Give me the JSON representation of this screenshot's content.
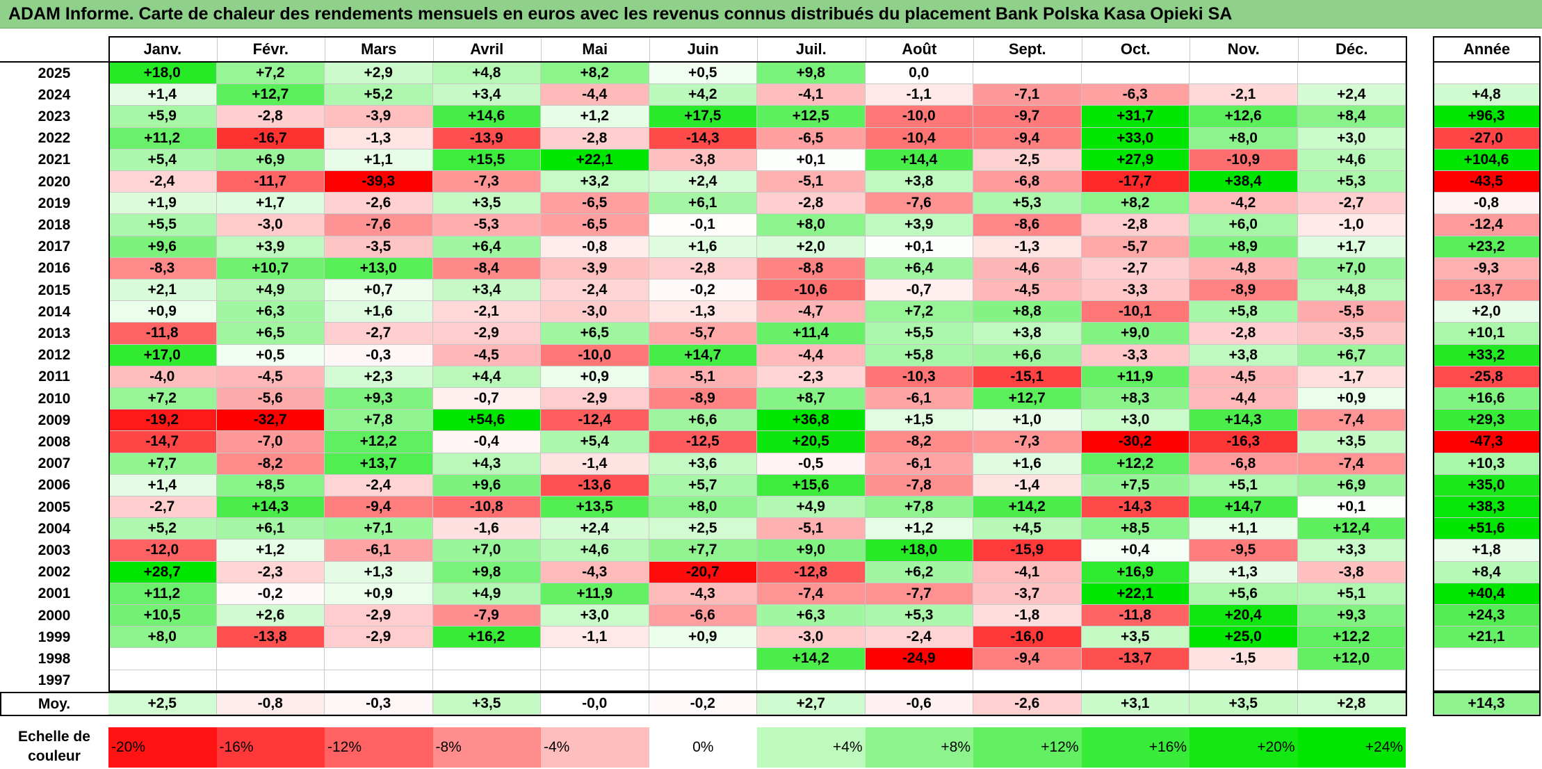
{
  "title": "ADAM Informe. Carte de chaleur des rendements mensuels en euros avec les revenus connus distribués du placement Bank Polska Kasa Opieki SA",
  "colors": {
    "title_bg": "#8fd08a",
    "negative_max": "#ff0000",
    "positive_max": "#00e600",
    "neutral": "#ffffff"
  },
  "chart_data": {
    "type": "heatmap",
    "title": "ADAM Informe. Carte de chaleur des rendements mensuels en euros avec les revenus connus distribués du placement Bank Polska Kasa Opieki SA",
    "months": [
      "Janv.",
      "Févr.",
      "Mars",
      "Avril",
      "Mai",
      "Juin",
      "Juil.",
      "Août",
      "Sept.",
      "Oct.",
      "Nov.",
      "Déc."
    ],
    "year_header": "Année",
    "rows": [
      {
        "year": "2025",
        "months": [
          "+18,0",
          "+7,2",
          "+2,9",
          "+4,8",
          "+8,2",
          "+0,5",
          "+9,8",
          "0,0",
          "",
          "",
          "",
          ""
        ],
        "annual": ""
      },
      {
        "year": "2024",
        "months": [
          "+1,4",
          "+12,7",
          "+5,2",
          "+3,4",
          "-4,4",
          "+4,2",
          "-4,1",
          "-1,1",
          "-7,1",
          "-6,3",
          "-2,1",
          "+2,4"
        ],
        "annual": "+4,8"
      },
      {
        "year": "2023",
        "months": [
          "+5,9",
          "-2,8",
          "-3,9",
          "+14,6",
          "+1,2",
          "+17,5",
          "+12,5",
          "-10,0",
          "-9,7",
          "+31,7",
          "+12,6",
          "+8,4"
        ],
        "annual": "+96,3"
      },
      {
        "year": "2022",
        "months": [
          "+11,2",
          "-16,7",
          "-1,3",
          "-13,9",
          "-2,8",
          "-14,3",
          "-6,5",
          "-10,4",
          "-9,4",
          "+33,0",
          "+8,0",
          "+3,0"
        ],
        "annual": "-27,0"
      },
      {
        "year": "2021",
        "months": [
          "+5,4",
          "+6,9",
          "+1,1",
          "+15,5",
          "+22,1",
          "-3,8",
          "+0,1",
          "+14,4",
          "-2,5",
          "+27,9",
          "-10,9",
          "+4,6"
        ],
        "annual": "+104,6"
      },
      {
        "year": "2020",
        "months": [
          "-2,4",
          "-11,7",
          "-39,3",
          "-7,3",
          "+3,2",
          "+2,4",
          "-5,1",
          "+3,8",
          "-6,8",
          "-17,7",
          "+38,4",
          "+5,3"
        ],
        "annual": "-43,5"
      },
      {
        "year": "2019",
        "months": [
          "+1,9",
          "+1,7",
          "-2,6",
          "+3,5",
          "-6,5",
          "+6,1",
          "-2,8",
          "-7,6",
          "+5,3",
          "+8,2",
          "-4,2",
          "-2,7"
        ],
        "annual": "-0,8"
      },
      {
        "year": "2018",
        "months": [
          "+5,5",
          "-3,0",
          "-7,6",
          "-5,3",
          "-6,5",
          "-0,1",
          "+8,0",
          "+3,9",
          "-8,6",
          "-2,8",
          "+6,0",
          "-1,0"
        ],
        "annual": "-12,4"
      },
      {
        "year": "2017",
        "months": [
          "+9,6",
          "+3,9",
          "-3,5",
          "+6,4",
          "-0,8",
          "+1,6",
          "+2,0",
          "+0,1",
          "-1,3",
          "-5,7",
          "+8,9",
          "+1,7"
        ],
        "annual": "+23,2"
      },
      {
        "year": "2016",
        "months": [
          "-8,3",
          "+10,7",
          "+13,0",
          "-8,4",
          "-3,9",
          "-2,8",
          "-8,8",
          "+6,4",
          "-4,6",
          "-2,7",
          "-4,8",
          "+7,0"
        ],
        "annual": "-9,3"
      },
      {
        "year": "2015",
        "months": [
          "+2,1",
          "+4,9",
          "+0,7",
          "+3,4",
          "-2,4",
          "-0,2",
          "-10,6",
          "-0,7",
          "-4,5",
          "-3,3",
          "-8,9",
          "+4,8"
        ],
        "annual": "-13,7"
      },
      {
        "year": "2014",
        "months": [
          "+0,9",
          "+6,3",
          "+1,6",
          "-2,1",
          "-3,0",
          "-1,3",
          "-4,7",
          "+7,2",
          "+8,8",
          "-10,1",
          "+5,8",
          "-5,5"
        ],
        "annual": "+2,0"
      },
      {
        "year": "2013",
        "months": [
          "-11,8",
          "+6,5",
          "-2,7",
          "-2,9",
          "+6,5",
          "-5,7",
          "+11,4",
          "+5,5",
          "+3,8",
          "+9,0",
          "-2,8",
          "-3,5"
        ],
        "annual": "+10,1"
      },
      {
        "year": "2012",
        "months": [
          "+17,0",
          "+0,5",
          "-0,3",
          "-4,5",
          "-10,0",
          "+14,7",
          "-4,4",
          "+5,8",
          "+6,6",
          "-3,3",
          "+3,8",
          "+6,7"
        ],
        "annual": "+33,2"
      },
      {
        "year": "2011",
        "months": [
          "-4,0",
          "-4,5",
          "+2,3",
          "+4,4",
          "+0,9",
          "-5,1",
          "-2,3",
          "-10,3",
          "-15,1",
          "+11,9",
          "-4,5",
          "-1,7"
        ],
        "annual": "-25,8"
      },
      {
        "year": "2010",
        "months": [
          "+7,2",
          "-5,6",
          "+9,3",
          "-0,7",
          "-2,9",
          "-8,9",
          "+8,7",
          "-6,1",
          "+12,7",
          "+8,3",
          "-4,4",
          "+0,9"
        ],
        "annual": "+16,6"
      },
      {
        "year": "2009",
        "months": [
          "-19,2",
          "-32,7",
          "+7,8",
          "+54,6",
          "-12,4",
          "+6,6",
          "+36,8",
          "+1,5",
          "+1,0",
          "+3,0",
          "+14,3",
          "-7,4"
        ],
        "annual": "+29,3"
      },
      {
        "year": "2008",
        "months": [
          "-14,7",
          "-7,0",
          "+12,2",
          "-0,4",
          "+5,4",
          "-12,5",
          "+20,5",
          "-8,2",
          "-7,3",
          "-30,2",
          "-16,3",
          "+3,5"
        ],
        "annual": "-47,3"
      },
      {
        "year": "2007",
        "months": [
          "+7,7",
          "-8,2",
          "+13,7",
          "+4,3",
          "-1,4",
          "+3,6",
          "-0,5",
          "-6,1",
          "+1,6",
          "+12,2",
          "-6,8",
          "-7,4"
        ],
        "annual": "+10,3"
      },
      {
        "year": "2006",
        "months": [
          "+1,4",
          "+8,5",
          "-2,4",
          "+9,6",
          "-13,6",
          "+5,7",
          "+15,6",
          "-7,8",
          "-1,4",
          "+7,5",
          "+5,1",
          "+6,9"
        ],
        "annual": "+35,0"
      },
      {
        "year": "2005",
        "months": [
          "-2,7",
          "+14,3",
          "-9,4",
          "-10,8",
          "+13,5",
          "+8,0",
          "+4,9",
          "+7,8",
          "+14,2",
          "-14,3",
          "+14,7",
          "+0,1"
        ],
        "annual": "+38,3"
      },
      {
        "year": "2004",
        "months": [
          "+5,2",
          "+6,1",
          "+7,1",
          "-1,6",
          "+2,4",
          "+2,5",
          "-5,1",
          "+1,2",
          "+4,5",
          "+8,5",
          "+1,1",
          "+12,4"
        ],
        "annual": "+51,6"
      },
      {
        "year": "2003",
        "months": [
          "-12,0",
          "+1,2",
          "-6,1",
          "+7,0",
          "+4,6",
          "+7,7",
          "+9,0",
          "+18,0",
          "-15,9",
          "+0,4",
          "-9,5",
          "+3,3"
        ],
        "annual": "+1,8"
      },
      {
        "year": "2002",
        "months": [
          "+28,7",
          "-2,3",
          "+1,3",
          "+9,8",
          "-4,3",
          "-20,7",
          "-12,8",
          "+6,2",
          "-4,1",
          "+16,9",
          "+1,3",
          "-3,8"
        ],
        "annual": "+8,4"
      },
      {
        "year": "2001",
        "months": [
          "+11,2",
          "-0,2",
          "+0,9",
          "+4,9",
          "+11,9",
          "-4,3",
          "-7,4",
          "-7,7",
          "-3,7",
          "+22,1",
          "+5,6",
          "+5,1"
        ],
        "annual": "+40,4"
      },
      {
        "year": "2000",
        "months": [
          "+10,5",
          "+2,6",
          "-2,9",
          "-7,9",
          "+3,0",
          "-6,6",
          "+6,3",
          "+5,3",
          "-1,8",
          "-11,8",
          "+20,4",
          "+9,3"
        ],
        "annual": "+24,3"
      },
      {
        "year": "1999",
        "months": [
          "+8,0",
          "-13,8",
          "-2,9",
          "+16,2",
          "-1,1",
          "+0,9",
          "-3,0",
          "-2,4",
          "-16,0",
          "+3,5",
          "+25,0",
          "+12,2"
        ],
        "annual": "+21,1"
      },
      {
        "year": "1998",
        "months": [
          "",
          "",
          "",
          "",
          "",
          "",
          "+14,2",
          "-24,9",
          "-9,4",
          "-13,7",
          "-1,5",
          "+12,0"
        ],
        "annual": ""
      },
      {
        "year": "1997",
        "months": [
          "",
          "",
          "",
          "",
          "",
          "",
          "",
          "",
          "",
          "",
          "",
          ""
        ],
        "annual": ""
      }
    ],
    "average": {
      "label": "Moy.",
      "months": [
        "+2,5",
        "-0,8",
        "-0,3",
        "+3,5",
        "-0,0",
        "-0,2",
        "+2,7",
        "-0,6",
        "-2,6",
        "+3,1",
        "+3,5",
        "+2,8"
      ],
      "annual": "+14,3"
    },
    "scale": {
      "label": "Echelle de couleur",
      "steps": [
        {
          "text": "-20%",
          "value": -20
        },
        {
          "text": "-16%",
          "value": -16
        },
        {
          "text": "-12%",
          "value": -12
        },
        {
          "text": "-8%",
          "value": -8
        },
        {
          "text": "-4%",
          "value": -4
        },
        {
          "text": "0%",
          "value": 0
        },
        {
          "text": "+4%",
          "value": 4
        },
        {
          "text": "+8%",
          "value": 8
        },
        {
          "text": "+12%",
          "value": 12
        },
        {
          "text": "+16%",
          "value": 16
        },
        {
          "text": "+20%",
          "value": 20
        },
        {
          "text": "+24%",
          "value": 24
        }
      ]
    }
  }
}
